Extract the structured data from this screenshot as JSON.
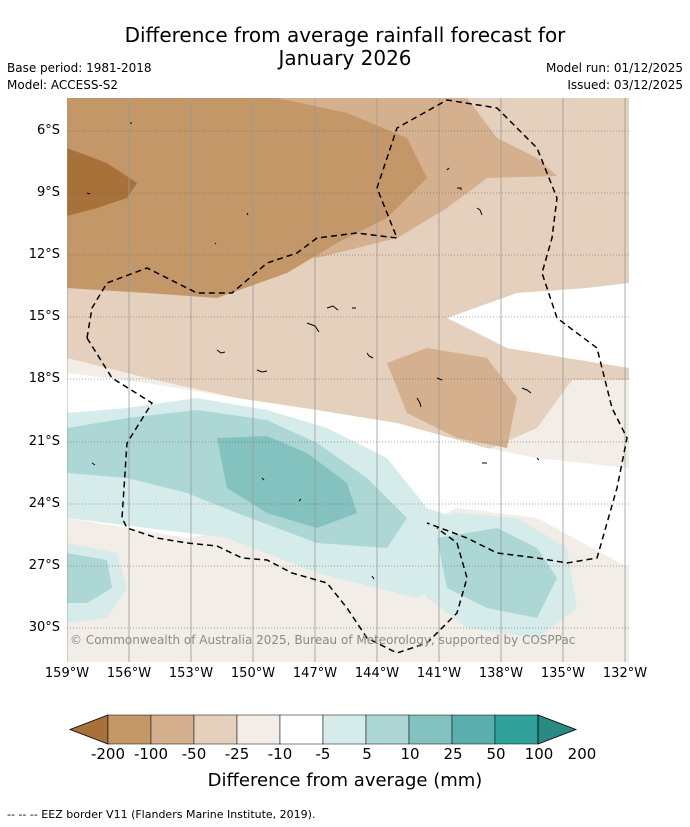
{
  "title": {
    "line1": "Difference from average rainfall forecast for",
    "line2": "January 2026"
  },
  "meta_left": {
    "base_period": "Base period: 1981-2018",
    "model": "Model: ACCESS-S2"
  },
  "meta_right": {
    "model_run": "Model run: 01/12/2025",
    "issued": "Issued: 03/12/2025"
  },
  "latitude_labels": [
    "6°S",
    "9°S",
    "12°S",
    "15°S",
    "18°S",
    "21°S",
    "24°S",
    "27°S",
    "30°S"
  ],
  "longitude_labels": [
    "159°W",
    "156°W",
    "153°W",
    "150°W",
    "147°W",
    "144°W",
    "141°W",
    "138°W",
    "135°W",
    "132°W"
  ],
  "credit": "© Commonwealth of Australia 2025, Bureau of Meteorology, supported by COSPPac",
  "colorbar": {
    "ticks": [
      "-200",
      "-100",
      "-50",
      "-25",
      "-10",
      "-5",
      "5",
      "10",
      "25",
      "50",
      "100",
      "200"
    ],
    "colors": [
      "#a8713a",
      "#c39768",
      "#d4b08e",
      "#e4d0bc",
      "#f2ede6",
      "#ffffff",
      "#d6ecea",
      "#acd7d5",
      "#83c2bf",
      "#5aaeab",
      "#31a19c",
      "#2b8984"
    ],
    "title": "Difference from average (mm)"
  },
  "footnote": "--  --  -- EEZ border V11 (Flanders Marine Institute, 2019)."
}
